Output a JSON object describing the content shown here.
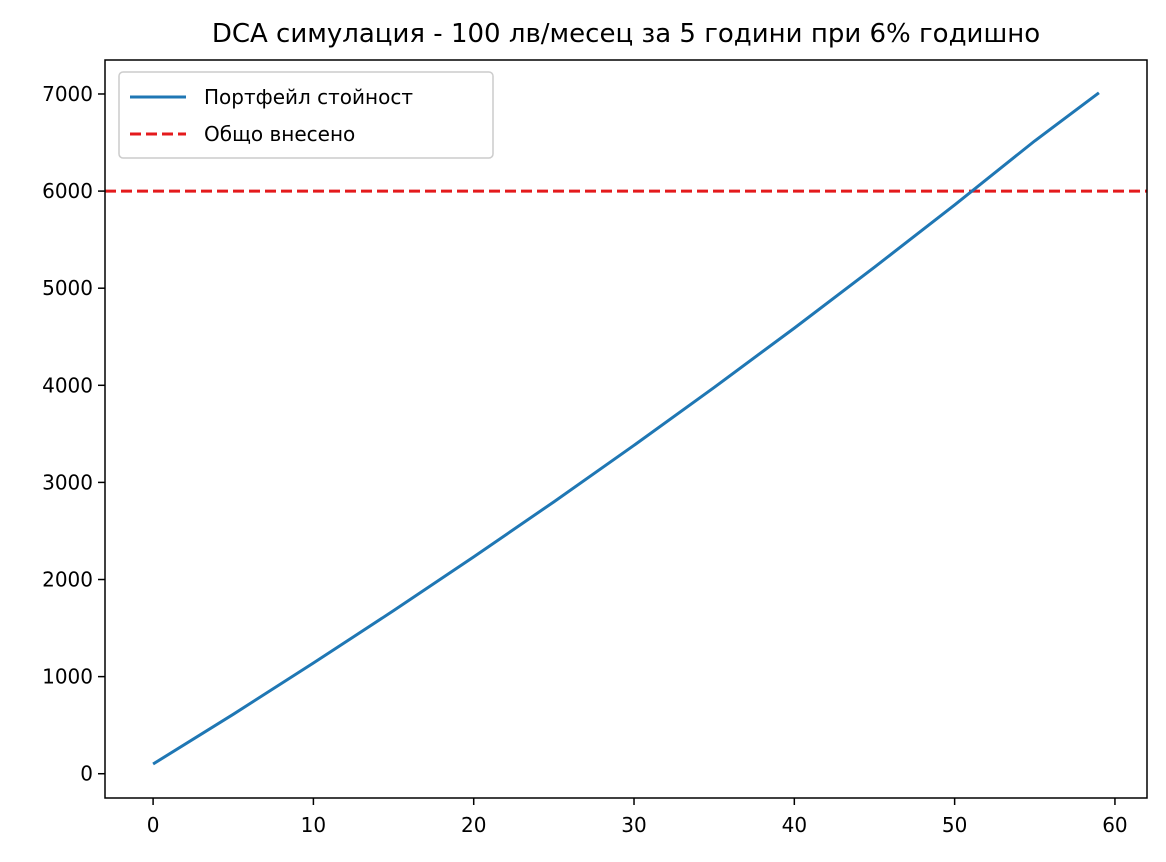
{
  "chart_data": {
    "type": "line",
    "title": "DCA симулация - 100 лв/месец за 5 години при 6% годишно",
    "xlabel": "",
    "ylabel": "",
    "xlim": [
      -3,
      62
    ],
    "ylim": [
      -250,
      7350
    ],
    "x_ticks": [
      0,
      10,
      20,
      30,
      40,
      50,
      60
    ],
    "y_ticks": [
      0,
      1000,
      2000,
      3000,
      4000,
      5000,
      6000,
      7000
    ],
    "grid": false,
    "legend_position": "top-left",
    "series": [
      {
        "name": "Портфейл стойност",
        "color": "#1f77b4",
        "style": "solid",
        "x": [
          0,
          5,
          10,
          15,
          20,
          25,
          30,
          35,
          40,
          45,
          50,
          55,
          59
        ],
        "y": [
          100,
          612,
          1140,
          1679,
          2233,
          2800,
          3382,
          3978,
          4589,
          5216,
          5858,
          6517,
          7012
        ]
      }
    ],
    "hlines": [
      {
        "name": "Общо внесено",
        "y": 6000,
        "color": "#e41a1c",
        "style": "dashed"
      }
    ]
  }
}
